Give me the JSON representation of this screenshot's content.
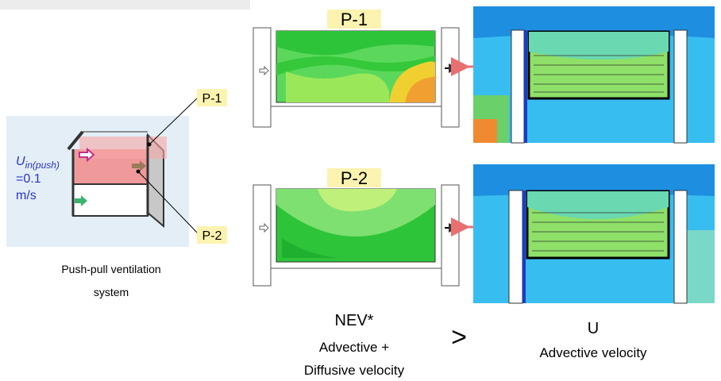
{
  "schematic": {
    "inlet_symbol": "U",
    "inlet_subscript": "in(push)",
    "inlet_value": "=0.1",
    "inlet_unit": "m/s",
    "planes": [
      "P-1",
      "P-2"
    ],
    "caption_lines": [
      "Push-pull ventilation",
      "system"
    ]
  },
  "panels": [
    {
      "label": "P-1"
    },
    {
      "label": "P-2"
    }
  ],
  "comparison": {
    "left_title": "NEV*",
    "left_lines": [
      "Advective +",
      "Diffusive velocity"
    ],
    "operator": ">",
    "right_title": "U",
    "right_line": "Advective velocity"
  }
}
